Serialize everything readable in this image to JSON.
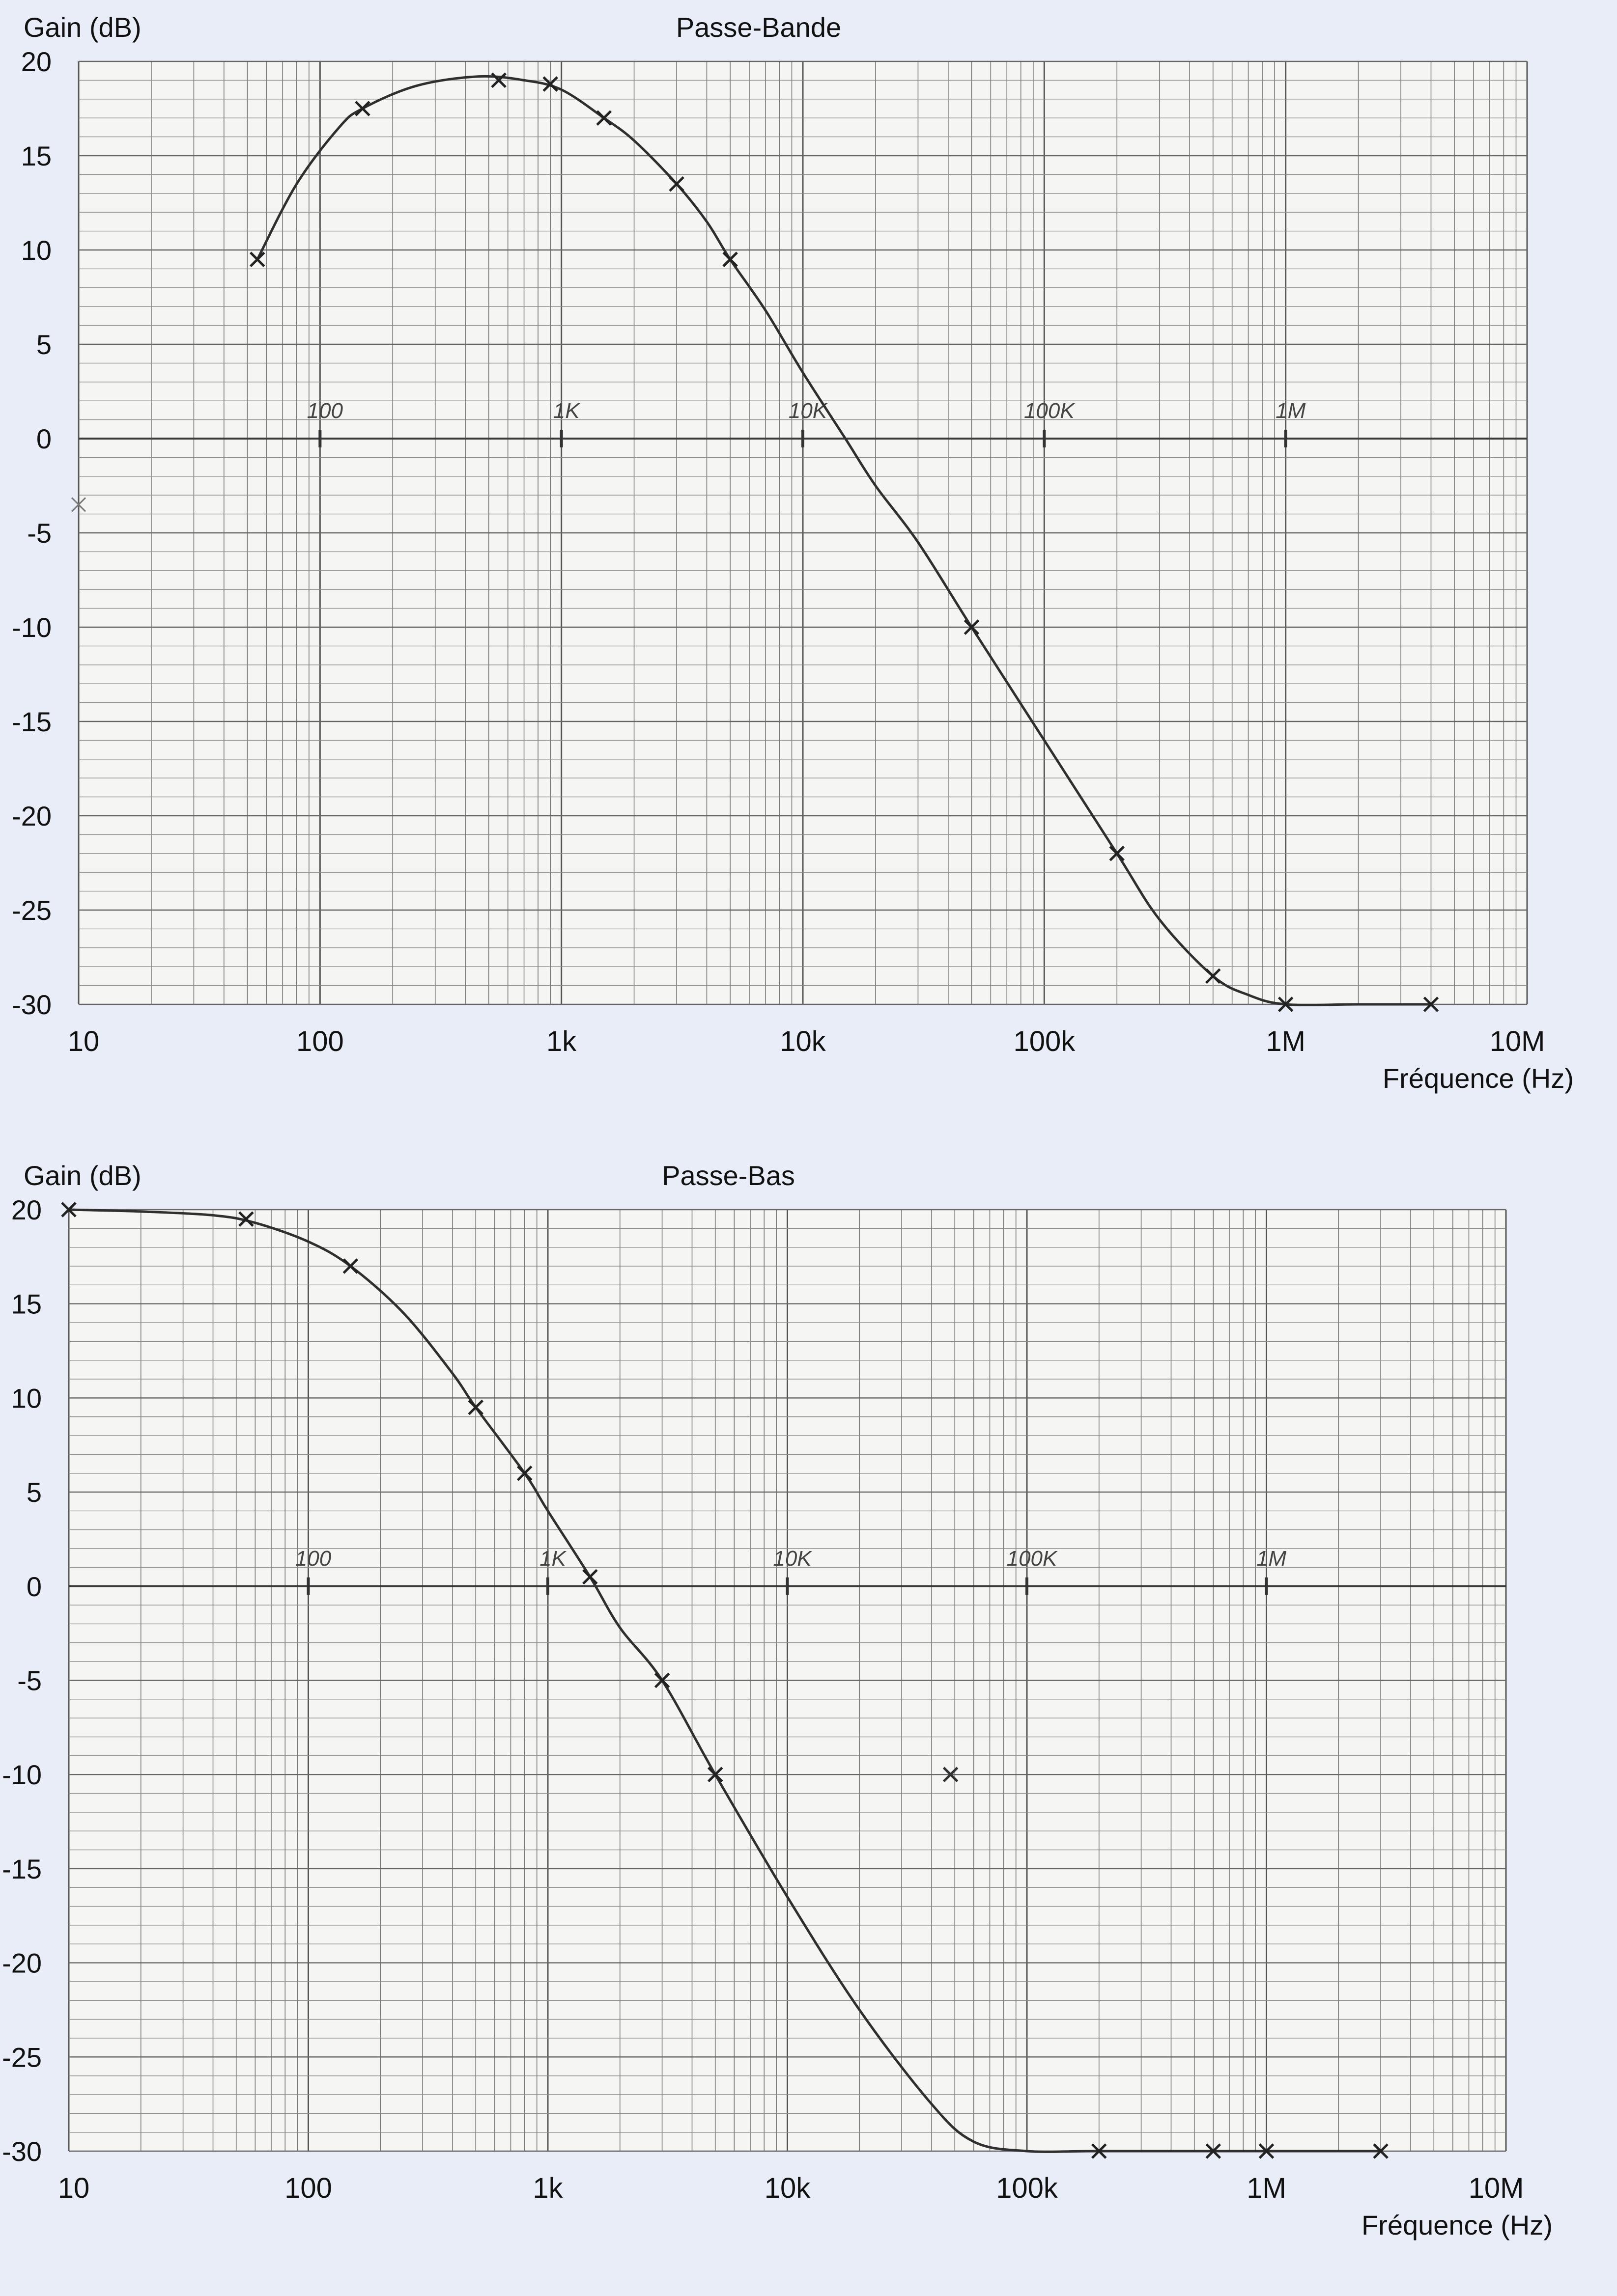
{
  "chart_data": [
    {
      "type": "line",
      "title": "Passe-Bande",
      "ylabel": "Gain (dB)",
      "xlabel": "Fréquence (Hz)",
      "xscale": "log",
      "xlim": [
        10,
        10000000
      ],
      "ylim": [
        -30,
        20
      ],
      "grid": true,
      "xticks": [
        {
          "value": 10,
          "label": "10"
        },
        {
          "value": 100,
          "label": "100"
        },
        {
          "value": 1000,
          "label": "1k"
        },
        {
          "value": 10000,
          "label": "10k"
        },
        {
          "value": 100000,
          "label": "100k"
        },
        {
          "value": 1000000,
          "label": "1M"
        },
        {
          "value": 10000000,
          "label": "10M"
        }
      ],
      "yticks": [
        20,
        15,
        10,
        5,
        0,
        -5,
        -10,
        -15,
        -20,
        -25,
        -30
      ],
      "axis_annotations": [
        {
          "value": 100,
          "label": "100"
        },
        {
          "value": 1000,
          "label": "1K"
        },
        {
          "value": 10000,
          "label": "10K"
        },
        {
          "value": 100000,
          "label": "100K"
        },
        {
          "value": 1000000,
          "label": "1M"
        }
      ],
      "series": [
        {
          "name": "Gain",
          "markers": [
            {
              "x": 55,
              "y": 9.5
            },
            {
              "x": 150,
              "y": 17.5
            },
            {
              "x": 550,
              "y": 19
            },
            {
              "x": 900,
              "y": 18.8
            },
            {
              "x": 1500,
              "y": 17
            },
            {
              "x": 3000,
              "y": 13.5
            },
            {
              "x": 5000,
              "y": 9.5
            },
            {
              "x": 50000,
              "y": -10
            },
            {
              "x": 200000,
              "y": -22
            },
            {
              "x": 500000,
              "y": -28.5
            },
            {
              "x": 1000000,
              "y": -30
            },
            {
              "x": 4000000,
              "y": -30
            }
          ],
          "curve": [
            [
              55,
              9.5
            ],
            [
              80,
              13.5
            ],
            [
              120,
              16.5
            ],
            [
              150,
              17.5
            ],
            [
              250,
              18.7
            ],
            [
              450,
              19.2
            ],
            [
              700,
              19
            ],
            [
              1000,
              18.5
            ],
            [
              1500,
              17
            ],
            [
              2000,
              15.8
            ],
            [
              3000,
              13.5
            ],
            [
              4000,
              11.5
            ],
            [
              5000,
              9.5
            ],
            [
              7000,
              6.8
            ],
            [
              10000,
              3.5
            ],
            [
              15000,
              0
            ],
            [
              20000,
              -2.5
            ],
            [
              30000,
              -5.5
            ],
            [
              50000,
              -10
            ],
            [
              100000,
              -16
            ],
            [
              200000,
              -22
            ],
            [
              300000,
              -25.5
            ],
            [
              500000,
              -28.5
            ],
            [
              700000,
              -29.5
            ],
            [
              1000000,
              -30
            ],
            [
              2000000,
              -30
            ],
            [
              4000000,
              -30
            ]
          ]
        }
      ],
      "stray_marks": [
        {
          "x": 10,
          "y": -3.5
        }
      ]
    },
    {
      "type": "line",
      "title": "Passe-Bas",
      "ylabel": "Gain (dB)",
      "xlabel": "Fréquence (Hz)",
      "xscale": "log",
      "xlim": [
        10,
        10000000
      ],
      "ylim": [
        -30,
        20
      ],
      "grid": true,
      "xticks": [
        {
          "value": 10,
          "label": "10"
        },
        {
          "value": 100,
          "label": "100"
        },
        {
          "value": 1000,
          "label": "1k"
        },
        {
          "value": 10000,
          "label": "10k"
        },
        {
          "value": 100000,
          "label": "100k"
        },
        {
          "value": 1000000,
          "label": "1M"
        },
        {
          "value": 10000000,
          "label": "10M"
        }
      ],
      "yticks": [
        20,
        15,
        10,
        5,
        0,
        -5,
        -10,
        -15,
        -20,
        -25,
        -30
      ],
      "axis_annotations": [
        {
          "value": 100,
          "label": "100"
        },
        {
          "value": 1000,
          "label": "1K"
        },
        {
          "value": 10000,
          "label": "10K"
        },
        {
          "value": 100000,
          "label": "100K"
        },
        {
          "value": 1000000,
          "label": "1M"
        }
      ],
      "series": [
        {
          "name": "Gain",
          "markers": [
            {
              "x": 10,
              "y": 20
            },
            {
              "x": 55,
              "y": 19.5
            },
            {
              "x": 150,
              "y": 17
            },
            {
              "x": 500,
              "y": 9.5
            },
            {
              "x": 800,
              "y": 6
            },
            {
              "x": 1500,
              "y": 0.5
            },
            {
              "x": 3000,
              "y": -5
            },
            {
              "x": 5000,
              "y": -10
            },
            {
              "x": 200000,
              "y": -30
            },
            {
              "x": 600000,
              "y": -30
            },
            {
              "x": 1000000,
              "y": -30
            },
            {
              "x": 3000000,
              "y": -30
            }
          ],
          "curve": [
            [
              10,
              20
            ],
            [
              20,
              19.9
            ],
            [
              40,
              19.7
            ],
            [
              60,
              19.3
            ],
            [
              100,
              18.3
            ],
            [
              150,
              17
            ],
            [
              250,
              14.5
            ],
            [
              400,
              11.3
            ],
            [
              500,
              9.5
            ],
            [
              800,
              6
            ],
            [
              1000,
              4
            ],
            [
              1500,
              0.5
            ],
            [
              2000,
              -2.2
            ],
            [
              3000,
              -5
            ],
            [
              5000,
              -10
            ],
            [
              10000,
              -16.5
            ],
            [
              20000,
              -22.5
            ],
            [
              40000,
              -27.5
            ],
            [
              60000,
              -29.5
            ],
            [
              100000,
              -30
            ],
            [
              200000,
              -30
            ],
            [
              1000000,
              -30
            ],
            [
              3000000,
              -30
            ]
          ]
        }
      ],
      "stray_marks": [
        {
          "x": 48000,
          "y": -10
        }
      ]
    }
  ]
}
